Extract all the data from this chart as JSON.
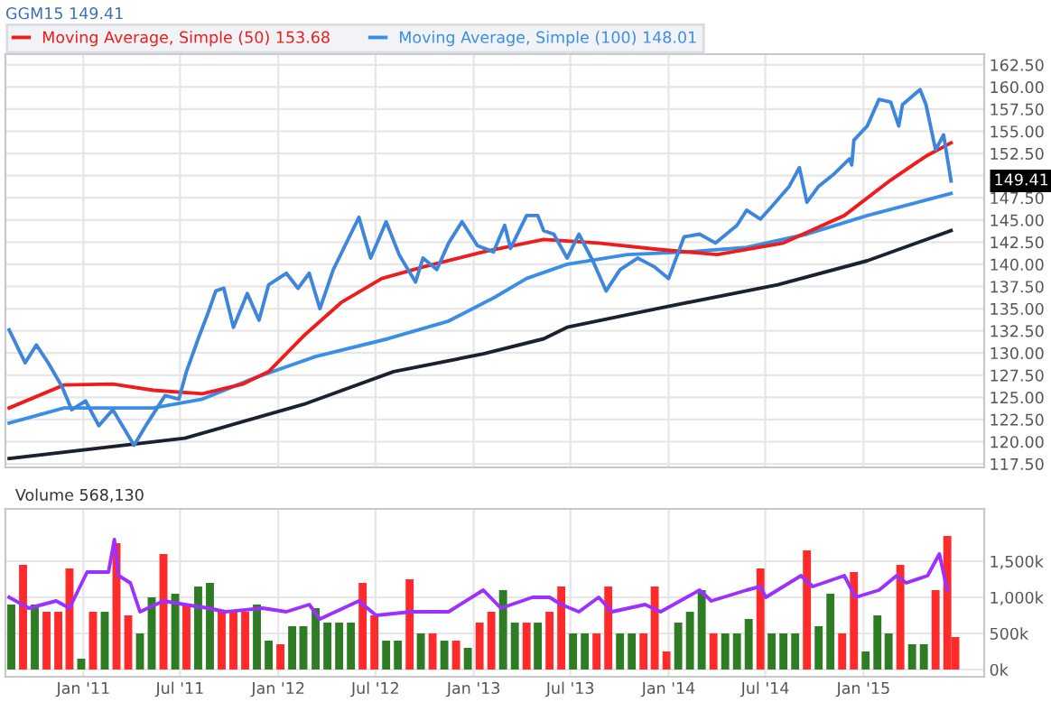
{
  "chart_data": [
    {
      "type": "line",
      "title": "GGM15 149.41",
      "legend": "top",
      "grid": true,
      "tick_labels": "y",
      "xlim": [
        "2010-08-08",
        "2015-08-15"
      ],
      "xticks": [
        {
          "value": "2011-01-01",
          "label": null
        },
        {
          "value": "2011-07-01",
          "label": null
        },
        {
          "value": "2012-01-01",
          "label": null
        },
        {
          "value": "2012-07-01",
          "label": null
        },
        {
          "value": "2013-01-01",
          "label": null
        },
        {
          "value": "2013-07-01",
          "label": null
        },
        {
          "value": "2014-01-01",
          "label": null
        },
        {
          "value": "2014-07-01",
          "label": null
        },
        {
          "value": "2015-01-01",
          "label": null
        }
      ],
      "ylim": [
        117.1,
        163.7
      ],
      "yticks": [
        {
          "value": 117.5,
          "label": "117.50"
        },
        {
          "value": 120,
          "label": "120.00"
        },
        {
          "value": 122.5,
          "label": "122.50"
        },
        {
          "value": 125,
          "label": "125.00"
        },
        {
          "value": 127.5,
          "label": "127.50"
        },
        {
          "value": 130,
          "label": "130.00"
        },
        {
          "value": 132.5,
          "label": "132.50"
        },
        {
          "value": 135,
          "label": "135.00"
        },
        {
          "value": 137.5,
          "label": "137.50"
        },
        {
          "value": 140,
          "label": "140.00"
        },
        {
          "value": 142.5,
          "label": "142.50"
        },
        {
          "value": 145,
          "label": "145.00"
        },
        {
          "value": 147.5,
          "label": "147.50"
        },
        {
          "value": 150,
          "label": null
        },
        {
          "value": 152.5,
          "label": "152.50"
        },
        {
          "value": 155,
          "label": "155.00"
        },
        {
          "value": 157.5,
          "label": "157.50"
        },
        {
          "value": 160,
          "label": "160.00"
        },
        {
          "value": 162.5,
          "label": "162.50"
        }
      ],
      "annotations": [
        {
          "text": "149.41",
          "x": "2015-06-14",
          "y": 149.4
        }
      ],
      "series": [
        {
          "color": "#1a2230",
          "x": [
            "2010-08-15",
            "2011-07-10",
            "2012-02-17",
            "2012-08-04",
            "2013-01-19",
            "2013-05-12",
            "2013-06-25",
            "2013-12-10",
            "2014-07-24",
            "2015-01-08",
            "2015-06-14"
          ],
          "values": [
            118.1,
            120.4,
            124.2,
            127.9,
            129.9,
            131.6,
            132.9,
            135.0,
            137.7,
            140.4,
            143.8
          ]
        },
        {
          "name": "Moving Average, Simple (100) 148.01",
          "color": "#3a8ee6",
          "x": [
            "2010-08-15",
            "2010-11-26",
            "2011-05-12",
            "2011-08-12",
            "2011-11-18",
            "2012-03-11",
            "2012-07-24",
            "2012-11-15",
            "2013-02-10",
            "2013-04-10",
            "2013-06-25",
            "2013-10-16",
            "2014-02-07",
            "2014-05-27",
            "2014-09-17",
            "2015-01-08",
            "2015-06-14"
          ],
          "values": [
            122.1,
            123.8,
            123.8,
            124.8,
            127.2,
            129.6,
            131.6,
            133.6,
            136.3,
            138.4,
            140.0,
            141.1,
            141.4,
            141.9,
            143.4,
            145.5,
            148.0
          ]
        },
        {
          "name": "Moving Average, Simple (50) 153.68",
          "color": "#ee1c1c",
          "x": [
            "2010-08-15",
            "2010-11-26",
            "2011-02-25",
            "2011-05-12",
            "2011-08-12",
            "2011-10-27",
            "2011-12-14",
            "2012-02-17",
            "2012-04-28",
            "2012-07-13",
            "2012-09-28",
            "2013-01-19",
            "2013-05-12",
            "2013-08-23",
            "2013-12-10",
            "2014-04-02",
            "2014-08-04",
            "2014-11-26",
            "2015-02-21",
            "2015-04-28",
            "2015-06-14"
          ],
          "values": [
            123.8,
            126.4,
            126.5,
            125.8,
            125.4,
            126.5,
            127.9,
            131.9,
            135.7,
            138.4,
            139.7,
            141.4,
            142.8,
            142.4,
            141.7,
            141.1,
            142.4,
            145.5,
            149.5,
            152.2,
            153.7
          ]
        },
        {
          "color": "#3d86dc",
          "x": [
            "2010-08-15",
            "2010-09-14",
            "2010-10-05",
            "2010-10-27",
            "2010-11-22",
            "2010-12-10",
            "2011-01-05",
            "2011-01-30",
            "2011-02-25",
            "2011-04-06",
            "2011-05-01",
            "2011-06-03",
            "2011-06-29",
            "2011-07-13",
            "2011-08-04",
            "2011-08-23",
            "2011-09-06",
            "2011-09-21",
            "2011-10-09",
            "2011-11-04",
            "2011-11-26",
            "2011-12-14",
            "2012-01-16",
            "2012-02-07",
            "2012-02-28",
            "2012-03-19",
            "2012-04-13",
            "2012-05-31",
            "2012-06-22",
            "2012-07-21",
            "2012-08-15",
            "2012-09-14",
            "2012-09-28",
            "2012-10-24",
            "2012-11-15",
            "2012-12-10",
            "2013-01-08",
            "2013-02-07",
            "2013-02-28",
            "2013-03-11",
            "2013-04-10",
            "2013-05-01",
            "2013-05-12",
            "2013-05-31",
            "2013-06-25",
            "2013-07-17",
            "2013-08-12",
            "2013-09-06",
            "2013-10-02",
            "2013-11-04",
            "2013-12-06",
            "2014-01-01",
            "2014-01-30",
            "2014-02-28",
            "2014-03-30",
            "2014-05-09",
            "2014-05-27",
            "2014-06-22",
            "2014-07-13",
            "2014-08-15",
            "2014-09-03",
            "2014-09-17",
            "2014-10-09",
            "2014-11-07",
            "2014-12-06",
            "2014-12-10",
            "2014-12-14",
            "2015-01-08",
            "2015-01-30",
            "2015-02-21",
            "2015-03-08",
            "2015-03-15",
            "2015-04-17",
            "2015-04-28",
            "2015-05-16",
            "2015-05-31",
            "2015-06-14"
          ],
          "values": [
            132.6,
            128.9,
            130.9,
            128.9,
            126.2,
            123.6,
            124.6,
            121.8,
            123.6,
            119.6,
            122.1,
            125.2,
            124.8,
            127.9,
            131.6,
            134.6,
            137.0,
            137.3,
            132.9,
            136.7,
            133.7,
            137.7,
            139.0,
            137.3,
            139.0,
            135.0,
            139.4,
            145.3,
            140.7,
            144.8,
            141.0,
            138.0,
            140.7,
            139.4,
            142.4,
            144.8,
            142.1,
            141.4,
            144.4,
            141.8,
            145.5,
            145.5,
            143.8,
            143.4,
            140.7,
            143.4,
            140.4,
            137.0,
            139.4,
            140.7,
            139.7,
            138.4,
            143.1,
            143.4,
            142.4,
            144.4,
            146.1,
            145.1,
            146.5,
            148.8,
            150.9,
            147.0,
            148.8,
            150.2,
            151.9,
            151.2,
            154.0,
            155.6,
            158.6,
            158.3,
            155.6,
            158.0,
            159.7,
            158.0,
            152.9,
            154.6,
            149.4
          ]
        }
      ]
    },
    {
      "type": "bar",
      "title": "Volume 568,130",
      "grid": true,
      "xlim": [
        "2010-08-08",
        "2015-08-15"
      ],
      "xticks": [
        {
          "value": "2011-01-01",
          "label": "Jan '11"
        },
        {
          "value": "2011-07-01",
          "label": "Jul '11"
        },
        {
          "value": "2012-01-01",
          "label": "Jan '12"
        },
        {
          "value": "2012-07-01",
          "label": "Jul '12"
        },
        {
          "value": "2013-01-01",
          "label": "Jan '13"
        },
        {
          "value": "2013-07-01",
          "label": "Jul '13"
        },
        {
          "value": "2014-01-01",
          "label": "Jan '14"
        },
        {
          "value": "2014-07-01",
          "label": "Jul '14"
        },
        {
          "value": "2015-01-01",
          "label": "Jan '15"
        }
      ],
      "ylim": [
        -100,
        2225
      ],
      "yticks": [
        {
          "value": 0,
          "label": "0k"
        },
        {
          "value": 500,
          "label": "500k"
        },
        {
          "value": 1000,
          "label": "1,000k"
        },
        {
          "value": 1500,
          "label": "1,500k"
        }
      ],
      "series": [
        {
          "type": "bar",
          "x": [
            "2010-08-19",
            "2010-09-10",
            "2010-10-02",
            "2010-10-24",
            "2010-11-15",
            "2010-12-06",
            "2010-12-28",
            "2011-01-19",
            "2011-02-10",
            "2011-03-04",
            "2011-03-26",
            "2011-04-17",
            "2011-05-09",
            "2011-05-31",
            "2011-06-22",
            "2011-07-13",
            "2011-08-04",
            "2011-08-26",
            "2011-09-17",
            "2011-10-09",
            "2011-10-31",
            "2011-11-22",
            "2011-12-14",
            "2012-01-05",
            "2012-01-27",
            "2012-02-17",
            "2012-03-11",
            "2012-04-02",
            "2012-04-24",
            "2012-05-16",
            "2012-06-07",
            "2012-06-29",
            "2012-07-21",
            "2012-08-12",
            "2012-09-03",
            "2012-09-24",
            "2012-10-16",
            "2012-11-07",
            "2012-11-29",
            "2012-12-21",
            "2013-01-12",
            "2013-02-03",
            "2013-02-25",
            "2013-03-19",
            "2013-04-10",
            "2013-05-01",
            "2013-05-23",
            "2013-06-14",
            "2013-07-06",
            "2013-07-28",
            "2013-08-19",
            "2013-09-10",
            "2013-10-02",
            "2013-10-24",
            "2013-11-15",
            "2013-12-06",
            "2013-12-28",
            "2014-01-19",
            "2014-02-10",
            "2014-03-04",
            "2014-03-26",
            "2014-04-17",
            "2014-05-09",
            "2014-05-31",
            "2014-06-22",
            "2014-07-13",
            "2014-08-04",
            "2014-08-26",
            "2014-09-17",
            "2014-10-09",
            "2014-10-31",
            "2014-11-22",
            "2014-12-14",
            "2015-01-05",
            "2015-01-27",
            "2015-02-17",
            "2015-03-11",
            "2015-04-02",
            "2015-04-24",
            "2015-05-16",
            "2015-06-07",
            "2015-06-22"
          ],
          "values": [
            900,
            1450,
            900,
            800,
            800,
            1400,
            150,
            800,
            800,
            1750,
            750,
            500,
            1000,
            1600,
            1050,
            900,
            1150,
            1200,
            800,
            800,
            800,
            900,
            400,
            350,
            600,
            600,
            850,
            650,
            650,
            650,
            1200,
            750,
            400,
            400,
            1250,
            500,
            500,
            400,
            400,
            300,
            650,
            800,
            1100,
            650,
            650,
            650,
            800,
            1150,
            500,
            500,
            500,
            1150,
            500,
            500,
            500,
            1150,
            250,
            650,
            800,
            1100,
            500,
            500,
            500,
            700,
            1400,
            500,
            500,
            500,
            1650,
            600,
            1050,
            500,
            1350,
            250,
            750,
            500,
            1450,
            350,
            350,
            1100,
            1850,
            450
          ],
          "colors": [
            "#2e7d24",
            "#ff2b2b",
            "#2e7d24",
            "#ff2b2b",
            "#ff2b2b",
            "#ff2b2b",
            "#2e7d24",
            "#ff2b2b",
            "#2e7d24",
            "#ff2b2b",
            "#ff2b2b",
            "#2e7d24",
            "#2e7d24",
            "#ff2b2b",
            "#2e7d24",
            "#ff2b2b",
            "#2e7d24",
            "#2e7d24",
            "#ff2b2b",
            "#ff2b2b",
            "#ff2b2b",
            "#2e7d24",
            "#2e7d24",
            "#ff2b2b",
            "#2e7d24",
            "#2e7d24",
            "#2e7d24",
            "#2e7d24",
            "#2e7d24",
            "#2e7d24",
            "#ff2b2b",
            "#ff2b2b",
            "#2e7d24",
            "#2e7d24",
            "#ff2b2b",
            "#2e7d24",
            "#ff2b2b",
            "#2e7d24",
            "#ff2b2b",
            "#2e7d24",
            "#ff2b2b",
            "#ff2b2b",
            "#2e7d24",
            "#2e7d24",
            "#ff2b2b",
            "#2e7d24",
            "#ff2b2b",
            "#ff2b2b",
            "#2e7d24",
            "#2e7d24",
            "#ff2b2b",
            "#ff2b2b",
            "#2e7d24",
            "#2e7d24",
            "#ff2b2b",
            "#ff2b2b",
            "#ff2b2b",
            "#2e7d24",
            "#2e7d24",
            "#2e7d24",
            "#ff2b2b",
            "#2e7d24",
            "#2e7d24",
            "#2e7d24",
            "#ff2b2b",
            "#2e7d24",
            "#2e7d24",
            "#2e7d24",
            "#ff2b2b",
            "#2e7d24",
            "#2e7d24",
            "#ff2b2b",
            "#ff2b2b",
            "#2e7d24",
            "#2e7d24",
            "#2e7d24",
            "#ff2b2b",
            "#2e7d24",
            "#2e7d24",
            "#ff2b2b",
            "#ff2b2b",
            "#ff2b2b"
          ]
        },
        {
          "type": "line",
          "color": "#9b30ff",
          "x": [
            "2010-08-15",
            "2010-09-21",
            "2010-11-11",
            "2010-12-06",
            "2011-01-08",
            "2011-02-17",
            "2011-02-28",
            "2011-03-08",
            "2011-03-30",
            "2011-04-17",
            "2011-05-31",
            "2011-07-10",
            "2011-08-23",
            "2011-09-24",
            "2011-12-03",
            "2012-01-16",
            "2012-02-28",
            "2012-03-19",
            "2012-05-31",
            "2012-07-02",
            "2012-09-06",
            "2012-11-15",
            "2013-01-19",
            "2013-02-21",
            "2013-04-21",
            "2013-05-23",
            "2013-06-14",
            "2013-07-17",
            "2013-08-23",
            "2013-09-17",
            "2013-11-18",
            "2013-12-17",
            "2014-02-28",
            "2014-03-22",
            "2014-05-27",
            "2014-06-22",
            "2014-07-02",
            "2014-08-15",
            "2014-09-06",
            "2014-09-28",
            "2014-11-26",
            "2014-12-17",
            "2015-01-30",
            "2015-03-04",
            "2015-03-22",
            "2015-05-01",
            "2015-05-23",
            "2015-06-07"
          ],
          "values": [
            1000,
            850,
            950,
            850,
            1350,
            1350,
            1800,
            1300,
            1200,
            800,
            950,
            900,
            850,
            800,
            850,
            800,
            900,
            700,
            950,
            750,
            800,
            800,
            1100,
            850,
            1000,
            1000,
            900,
            800,
            1000,
            800,
            900,
            800,
            1100,
            950,
            1100,
            1150,
            1000,
            1200,
            1300,
            1150,
            1300,
            1000,
            1100,
            1300,
            1200,
            1300,
            1600,
            1100
          ]
        }
      ]
    }
  ]
}
